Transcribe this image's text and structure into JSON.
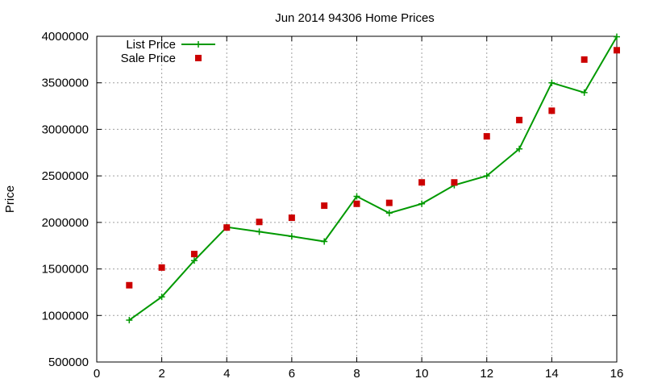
{
  "chart_data": {
    "type": "line",
    "title": "Jun 2014 94306 Home Prices",
    "xlabel": "",
    "ylabel": "Price",
    "xlim": [
      0,
      16
    ],
    "ylim": [
      500000,
      4000000
    ],
    "x_ticks": [
      0,
      2,
      4,
      6,
      8,
      10,
      12,
      14,
      16
    ],
    "y_ticks": [
      500000,
      1000000,
      1500000,
      2000000,
      2500000,
      3000000,
      3500000,
      4000000
    ],
    "grid": true,
    "legend_position": "top-left",
    "series": [
      {
        "name": "List Price",
        "style": "line-with-plus-markers",
        "color": "#009900",
        "x": [
          1,
          2,
          3,
          4,
          5,
          6,
          7,
          8,
          9,
          10,
          11,
          12,
          13,
          14,
          15,
          16
        ],
        "values": [
          950000,
          1200000,
          1590000,
          1950000,
          1900000,
          1850000,
          1795000,
          2280000,
          2100000,
          2200000,
          2400000,
          2500000,
          2790000,
          3500000,
          3395000,
          3995000
        ]
      },
      {
        "name": "Sale Price",
        "style": "square-markers",
        "color": "#cc0000",
        "x": [
          1,
          2,
          3,
          4,
          5,
          6,
          7,
          8,
          9,
          10,
          11,
          12,
          13,
          14,
          15,
          16
        ],
        "values": [
          1325000,
          1515000,
          1660000,
          1945000,
          2005000,
          2050000,
          2180000,
          2200000,
          2210000,
          2430000,
          2430000,
          2925000,
          3100000,
          3200000,
          3750000,
          3850000
        ]
      }
    ]
  }
}
